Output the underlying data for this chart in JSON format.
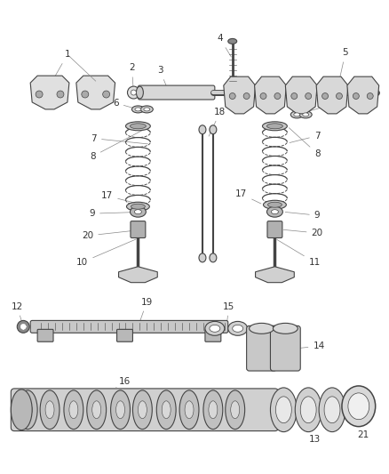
{
  "bg_color": "#ffffff",
  "line_color": "#444444",
  "label_color": "#333333",
  "fig_width": 4.38,
  "fig_height": 5.33,
  "dpi": 100
}
